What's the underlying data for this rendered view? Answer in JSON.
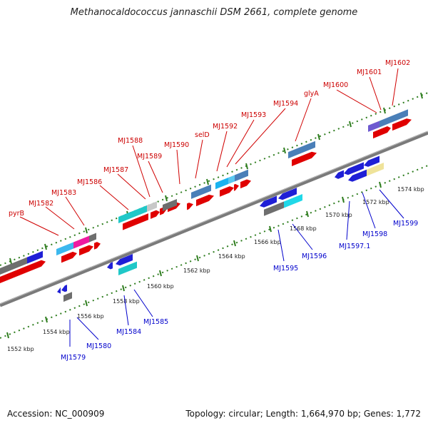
{
  "title": "Methanocaldococcus jannaschii DSM 2661, complete genome",
  "footer": {
    "accession": "Accession: NC_000909",
    "summary": "Topology: circular; Length: 1,664,970 bp; Genes: 1,772"
  },
  "colors": {
    "forward_label": "#cc0000",
    "reverse_label": "#0000cc",
    "backbone": "#777777",
    "tick": "#2e7d1e"
  },
  "scale_labels": [
    "1552 kbp",
    "1554 kbp",
    "1556 kbp",
    "1558 kbp",
    "1560 kbp",
    "1562 kbp",
    "1564 kbp",
    "1566 kbp",
    "1568 kbp",
    "1570 kbp",
    "1572 kbp",
    "1574 kbp"
  ],
  "forward_labels": [
    "pyrB",
    "MJ1582",
    "MJ1583",
    "MJ1586",
    "MJ1587",
    "MJ1588",
    "MJ1589",
    "MJ1590",
    "selD",
    "MJ1592",
    "MJ1593",
    "MJ1594",
    "glyA",
    "MJ1600",
    "MJ1601",
    "MJ1602"
  ],
  "reverse_labels": [
    "MJ1579",
    "MJ1580",
    "MJ1584",
    "MJ1585",
    "MJ1595",
    "MJ1596",
    "MJ1597.1",
    "MJ1598",
    "MJ1599"
  ]
}
